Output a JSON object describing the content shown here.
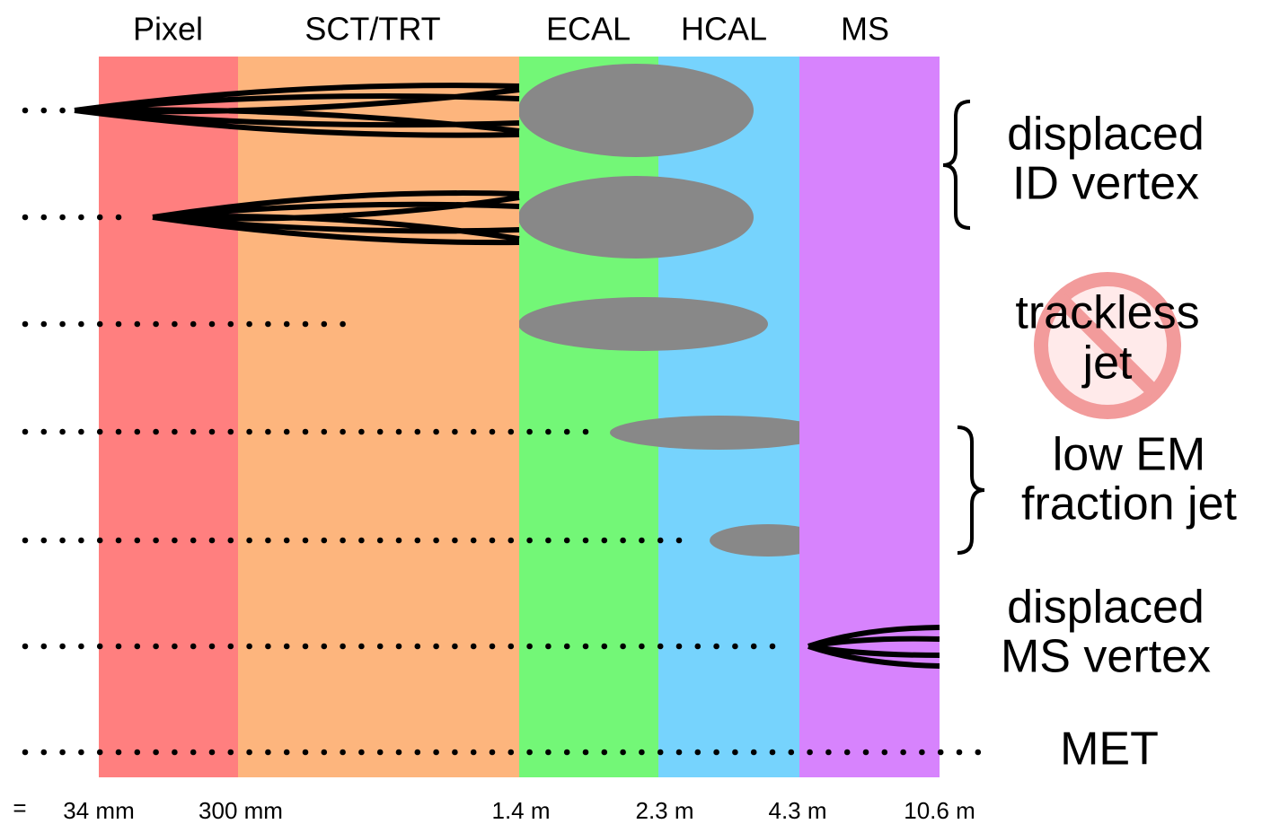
{
  "detectors": [
    "Pixel",
    "SCT/TRT",
    "ECAL",
    "HCAL",
    "MS"
  ],
  "distances": [
    "=",
    "34 mm",
    "300 mm",
    "1.4 m",
    "2.3 m",
    "4.3 m",
    "10.6 m"
  ],
  "signatures": [
    {
      "lines": [
        "displaced",
        "ID vertex"
      ]
    },
    {
      "lines": [
        "trackless",
        "jet"
      ]
    },
    {
      "lines": [
        "low EM",
        "fraction jet"
      ]
    },
    {
      "lines": [
        "displaced",
        "MS vertex"
      ]
    },
    {
      "lines": [
        "MET"
      ]
    }
  ]
}
